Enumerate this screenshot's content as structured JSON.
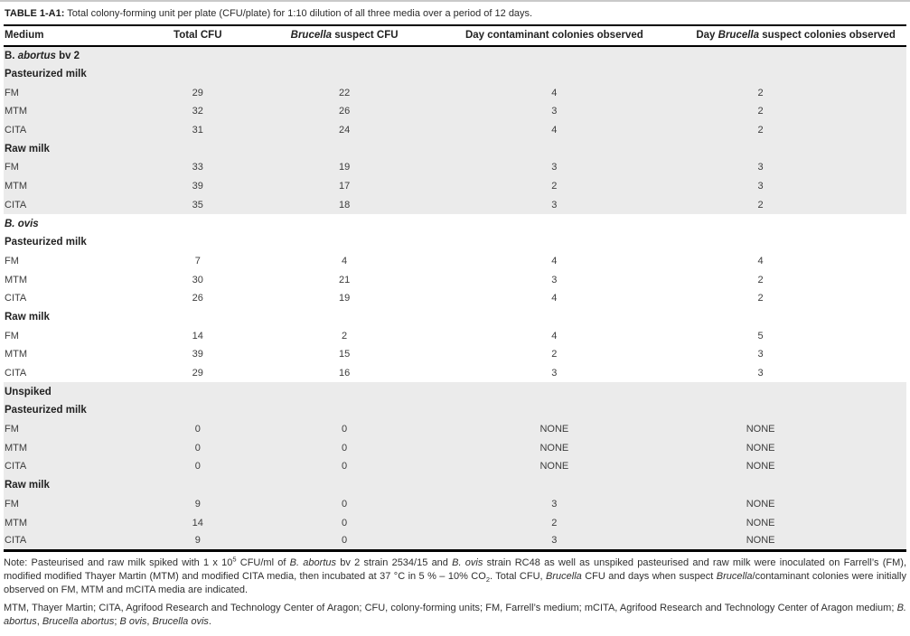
{
  "title": {
    "label": "TABLE 1-A1:",
    "text": " Total colony-forming unit per plate (CFU/plate) for 1:10 dilution of all three media over a period of 12 days."
  },
  "colors": {
    "shade": "#ebebeb",
    "rule": "#000000",
    "top_edge": "#c9c9c9"
  },
  "table": {
    "headers": [
      {
        "segs": [
          "Medium"
        ]
      },
      {
        "segs": [
          "Total CFU"
        ]
      },
      {
        "segs": [
          {
            "t": "Brucella",
            "i": true
          },
          " suspect CFU"
        ]
      },
      {
        "segs": [
          "Day contaminant colonies observed"
        ]
      },
      {
        "segs": [
          "Day ",
          {
            "t": "Brucella",
            "i": true
          },
          " suspect colonies observed"
        ]
      }
    ],
    "sections": [
      {
        "name_segs": [
          "B. ",
          {
            "t": "abortus",
            "i": true
          },
          " bv 2"
        ],
        "shaded": true,
        "groups": [
          {
            "name": "Pasteurized milk",
            "rows": [
              [
                "FM",
                "29",
                "22",
                "4",
                "2"
              ],
              [
                "MTM",
                "32",
                "26",
                "3",
                "2"
              ],
              [
                "CITA",
                "31",
                "24",
                "4",
                "2"
              ]
            ]
          },
          {
            "name": "Raw milk",
            "rows": [
              [
                "FM",
                "33",
                "19",
                "3",
                "3"
              ],
              [
                "MTM",
                "39",
                "17",
                "2",
                "3"
              ],
              [
                "CITA",
                "35",
                "18",
                "3",
                "2"
              ]
            ]
          }
        ]
      },
      {
        "name_segs": [
          {
            "t": "B. ovis",
            "i": true
          }
        ],
        "shaded": false,
        "groups": [
          {
            "name": "Pasteurized milk",
            "rows": [
              [
                "FM",
                "7",
                "4",
                "4",
                "4"
              ],
              [
                "MTM",
                "30",
                "21",
                "3",
                "2"
              ],
              [
                "CITA",
                "26",
                "19",
                "4",
                "2"
              ]
            ]
          },
          {
            "name": "Raw milk",
            "rows": [
              [
                "FM",
                "14",
                "2",
                "4",
                "5"
              ],
              [
                "MTM",
                "39",
                "15",
                "2",
                "3"
              ],
              [
                "CITA",
                "29",
                "16",
                "3",
                "3"
              ]
            ]
          }
        ]
      },
      {
        "name_segs": [
          "Unspiked"
        ],
        "shaded": true,
        "groups": [
          {
            "name": "Pasteurized milk",
            "rows": [
              [
                "FM",
                "0",
                "0",
                "NONE",
                "NONE"
              ],
              [
                "MTM",
                "0",
                "0",
                "NONE",
                "NONE"
              ],
              [
                "CITA",
                "0",
                "0",
                "NONE",
                "NONE"
              ]
            ]
          },
          {
            "name": "Raw milk",
            "rows": [
              [
                "FM",
                "9",
                "0",
                "3",
                "NONE"
              ],
              [
                "MTM",
                "14",
                "0",
                "2",
                "NONE"
              ],
              [
                "CITA",
                "9",
                "0",
                "3",
                "NONE"
              ]
            ]
          }
        ]
      }
    ]
  },
  "footnotes": {
    "note_segs": [
      "Note: Pasteurised and raw milk spiked with 1 x 10",
      {
        "t": "5",
        "sup": true
      },
      " CFU/ml of ",
      {
        "t": "B. abortus",
        "i": true
      },
      " bv 2 strain 2534/15 and ",
      {
        "t": "B. ovis",
        "i": true
      },
      " strain RC48 as well as unspiked pasteurised and raw milk were inoculated on Farrell’s (FM), modified modified Thayer Martin (MTM) and modified CITA media, then incubated at 37 °C in 5 % – 10% CO",
      {
        "t": "2",
        "sub": true
      },
      ". Total CFU, ",
      {
        "t": "Brucella",
        "i": true
      },
      " CFU and days when suspect ",
      {
        "t": "Brucella",
        "i": true
      },
      "/contaminant colonies were initially observed on FM, MTM and mCITA media are indicated."
    ],
    "abbrev_segs": [
      "MTM, Thayer Martin; CITA, Agrifood Research and Technology Center of Aragon; CFU, colony-forming units; FM, Farrell’s medium; mCITA, Agrifood Research and Technology Center of Aragon medium; ",
      {
        "t": "B. abortus",
        "i": true
      },
      ", ",
      {
        "t": "Brucella abortus",
        "i": true
      },
      "; ",
      {
        "t": "B ovis",
        "i": true
      },
      ", ",
      {
        "t": "Brucella ovis",
        "i": true
      },
      "."
    ]
  }
}
